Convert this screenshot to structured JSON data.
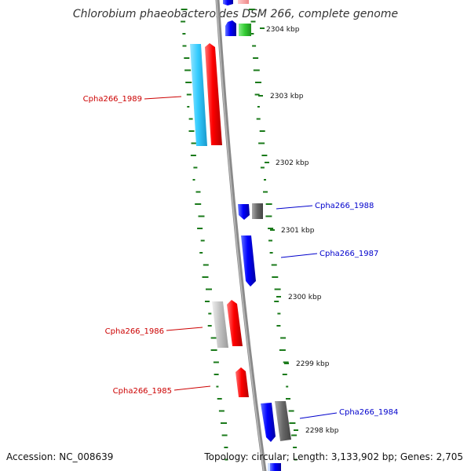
{
  "title": "Chlorobium phaeobacteroides DSM 266, complete genome",
  "accession_text": "Accession: NC_008639",
  "summary_text": "Topology: circular; Length: 3,133,902 bp; Genes: 2,705",
  "ruler": [
    {
      "label": "2304 kbp"
    },
    {
      "label": "2303 kbp"
    },
    {
      "label": "2302 kbp"
    },
    {
      "label": "2301 kbp"
    },
    {
      "label": "2300 kbp"
    },
    {
      "label": "2299 kbp"
    },
    {
      "label": "2298 kbp"
    }
  ],
  "gene_labels": [
    {
      "text": "Cpha266_1989",
      "color": "#cc0000"
    },
    {
      "text": "Cpha266_1988",
      "color": "#0000cc"
    },
    {
      "text": "Cpha266_1987",
      "color": "#0000cc"
    },
    {
      "text": "Cpha266_1986",
      "color": "#cc0000"
    },
    {
      "text": "Cpha266_1985",
      "color": "#cc0000"
    },
    {
      "text": "Cpha266_1984",
      "color": "#0000cc"
    }
  ],
  "colors": {
    "forward_cds": "#ff0000",
    "reverse_cds": "#0000ff",
    "pseudo_light": "#c0c0c0",
    "pseudo_dark": "#666666",
    "other_light_blue": "#33ccff",
    "other_green": "#33cc33",
    "gc_skew": "#1a7a1a",
    "backbone": "#8a8a8a"
  }
}
